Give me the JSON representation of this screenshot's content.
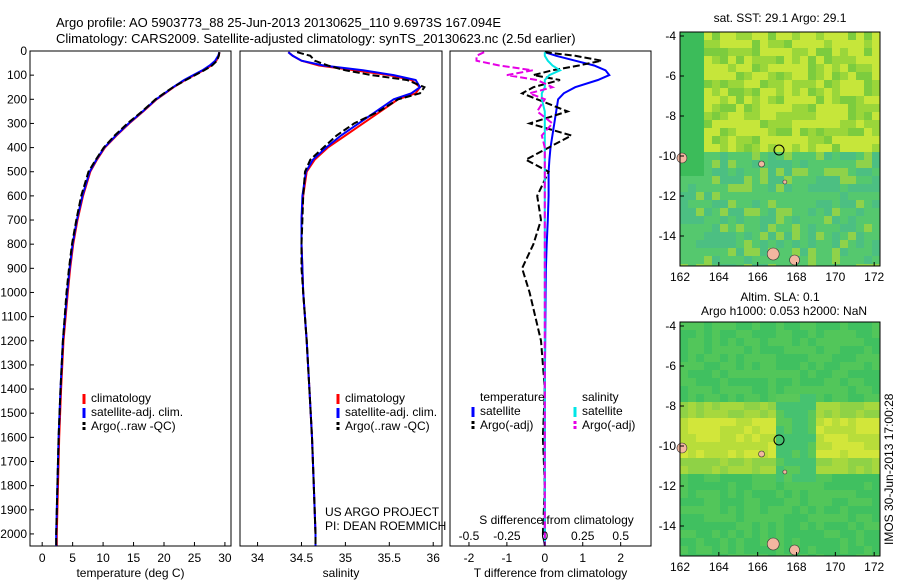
{
  "header": {
    "line1": "Argo profile: AO 5903773_88 25-Jun-2013 20130625_110 9.6973S 167.094E",
    "line2": "Climatology: CARS2009. Satellite-adjusted climatology: synTS_20130623.nc (2.5d earlier)"
  },
  "side_label": "IMOS 30-Jun-2013 17:00:28",
  "colors": {
    "climatology": "#ff0000",
    "satellite": "#0000ff",
    "argo": "#000000",
    "sat_s_diff": "#00e6e6",
    "argo_s_diff": "#e600e6",
    "map_base": "#55c73a",
    "land": "#f2b6a0"
  },
  "chart_data": [
    {
      "type": "line",
      "title": "",
      "xlabel": "temperature (deg C)",
      "ylabel": "",
      "xlim": [
        -2,
        31
      ],
      "ylim": [
        2050,
        0
      ],
      "xticks": [
        "0",
        "5",
        "10",
        "15",
        "20",
        "25",
        "30"
      ],
      "yticks": [
        "0",
        "100",
        "200",
        "300",
        "400",
        "500",
        "600",
        "700",
        "800",
        "900",
        "1000",
        "1100",
        "1200",
        "1300",
        "1400",
        "1500",
        "1600",
        "1700",
        "1800",
        "1900",
        "2000"
      ],
      "legend": [
        "climatology",
        "satellite-adj. clim.",
        "Argo(..raw -QC)"
      ],
      "depth": [
        5,
        20,
        40,
        60,
        80,
        100,
        120,
        150,
        175,
        200,
        250,
        300,
        350,
        400,
        450,
        500,
        600,
        700,
        800,
        900,
        1000,
        1200,
        1400,
        1600,
        1800,
        2000,
        2050
      ],
      "series": [
        {
          "name": "climatology",
          "values": [
            29.1,
            29.0,
            28.6,
            27.8,
            26.5,
            25.0,
            23.5,
            21.6,
            20.2,
            18.8,
            16.6,
            14.3,
            12.2,
            10.3,
            9.0,
            7.9,
            6.7,
            5.8,
            5.1,
            4.6,
            4.2,
            3.5,
            3.1,
            2.8,
            2.6,
            2.4,
            2.4
          ]
        },
        {
          "name": "satellite-adj. clim.",
          "values": [
            29.1,
            28.9,
            28.4,
            27.5,
            26.3,
            24.8,
            23.3,
            21.5,
            20.1,
            18.7,
            16.5,
            14.2,
            12.1,
            10.2,
            8.9,
            7.8,
            6.6,
            5.7,
            5.0,
            4.5,
            4.1,
            3.4,
            3.0,
            2.7,
            2.5,
            2.3,
            2.3
          ]
        },
        {
          "name": "Argo(..raw -QC)",
          "values": [
            29.1,
            29.0,
            28.7,
            27.9,
            26.6,
            25.1,
            23.6,
            21.5,
            20.0,
            18.6,
            16.4,
            14.0,
            11.9,
            10.1,
            8.8,
            7.6,
            6.4,
            5.6,
            4.9,
            4.4,
            4.0,
            3.4,
            3.0,
            2.7,
            2.5,
            2.3,
            2.3
          ]
        }
      ]
    },
    {
      "type": "line",
      "title": "",
      "xlabel": "salinity",
      "ylabel": "",
      "xlim": [
        33.8,
        36.1
      ],
      "ylim": [
        2050,
        0
      ],
      "xticks": [
        "34",
        "34.5",
        "35",
        "35.5",
        "36"
      ],
      "legend": [
        "climatology",
        "satellite-adj. clim.",
        "Argo(..raw -QC)"
      ],
      "annotation": [
        "US ARGO PROJECT",
        "PI: DEAN ROEMMICH"
      ],
      "depth": [
        5,
        20,
        40,
        60,
        80,
        100,
        120,
        150,
        175,
        200,
        250,
        300,
        350,
        400,
        450,
        500,
        600,
        700,
        800,
        900,
        1000,
        1200,
        1400,
        1600,
        1800,
        2000,
        2050
      ],
      "series": [
        {
          "name": "climatology",
          "values": [
            34.35,
            34.4,
            34.5,
            34.7,
            35.1,
            35.5,
            35.75,
            35.85,
            35.8,
            35.6,
            35.4,
            35.2,
            35.0,
            34.8,
            34.65,
            34.56,
            34.52,
            34.5,
            34.5,
            34.51,
            34.52,
            34.56,
            34.59,
            34.62,
            34.64,
            34.66,
            34.66
          ]
        },
        {
          "name": "satellite-adj. clim.",
          "values": [
            34.35,
            34.4,
            34.5,
            34.75,
            35.2,
            35.55,
            35.8,
            35.85,
            35.75,
            35.55,
            35.35,
            35.15,
            34.95,
            34.78,
            34.63,
            34.55,
            34.51,
            34.5,
            34.5,
            34.51,
            34.52,
            34.56,
            34.59,
            34.62,
            34.64,
            34.66,
            34.66
          ]
        },
        {
          "name": "Argo(..raw -QC)",
          "values": [
            34.45,
            34.6,
            34.65,
            34.8,
            35.0,
            35.3,
            35.7,
            35.9,
            35.85,
            35.6,
            35.38,
            35.1,
            34.9,
            34.75,
            34.6,
            34.54,
            34.52,
            34.51,
            34.5,
            34.5,
            34.52,
            34.56,
            34.59,
            34.62,
            34.64,
            34.66,
            34.66
          ]
        }
      ]
    },
    {
      "type": "line",
      "title": "",
      "xlabel": "T difference from climatology",
      "xlabel_top": "S difference from climatology",
      "xlim": [
        -2.5,
        2.8
      ],
      "ylim": [
        2050,
        0
      ],
      "xticks": [
        "-2",
        "-1",
        "0",
        "1",
        "2"
      ],
      "xticks_s": [
        "-0.5",
        "-0.25",
        "0",
        "0.25",
        "0.5"
      ],
      "legend_headers": [
        "temperature",
        "salinity"
      ],
      "legend": [
        "satellite",
        "Argo(-adj)",
        "satellite",
        "Argo(-adj)"
      ],
      "depth": [
        5,
        20,
        40,
        60,
        80,
        100,
        120,
        150,
        175,
        200,
        250,
        300,
        350,
        400,
        450,
        500,
        600,
        700,
        800,
        900,
        1000,
        1200,
        1400,
        1600,
        1800,
        2000,
        2050
      ],
      "series": [
        {
          "name": "T satellite",
          "values": [
            0.0,
            0.3,
            0.8,
            1.3,
            1.6,
            1.7,
            1.4,
            0.8,
            0.5,
            0.35,
            0.3,
            0.25,
            0.2,
            0.15,
            0.12,
            0.1,
            0.1,
            0.08,
            0.05,
            0.03,
            0.02,
            0.01,
            0.0,
            0.0,
            0.0,
            0.0,
            0.0
          ]
        },
        {
          "name": "T Argo(-adj)",
          "values": [
            0.0,
            0.8,
            1.5,
            0.9,
            0.2,
            -0.3,
            0.4,
            -0.3,
            -0.6,
            -0.2,
            0.6,
            -0.4,
            0.7,
            0.1,
            -0.5,
            0.1,
            -0.2,
            -0.1,
            -0.3,
            -0.6,
            -0.4,
            -0.1,
            0.0,
            -0.05,
            0.0,
            -0.05,
            0.0
          ]
        },
        {
          "name": "S satellite",
          "values": [
            0.0,
            0.0,
            0.02,
            0.05,
            0.1,
            0.03,
            0.0,
            0.0,
            -0.02,
            -0.02,
            0.0,
            0.0,
            0.0,
            0.0,
            0.0,
            0.0,
            0.0,
            0.0,
            0.0,
            0.0,
            0.0,
            0.0,
            0.0,
            0.0,
            0.0,
            0.0,
            0.0
          ]
        },
        {
          "name": "S Argo(-adj)",
          "values": [
            -0.4,
            -0.45,
            -0.45,
            -0.3,
            -0.08,
            -0.25,
            -0.05,
            0.05,
            -0.1,
            0.0,
            -0.05,
            0.05,
            -0.02,
            0.0,
            0.0,
            0.0,
            0.0,
            0.0,
            0.0,
            0.0,
            0.0,
            0.0,
            0.0,
            0.0,
            0.0,
            0.0,
            0.0
          ]
        }
      ]
    },
    {
      "type": "heatmap",
      "title": "sat. SST: 29.1 Argo: 29.1",
      "xlim": [
        162,
        172.3
      ],
      "ylim": [
        -15.5,
        -3.8
      ],
      "xticks": [
        "162",
        "164",
        "166",
        "168",
        "170",
        "172"
      ],
      "yticks": [
        "-4",
        "-6",
        "-8",
        "-10",
        "-12",
        "-14"
      ],
      "marker": [
        167.1,
        -9.7
      ]
    },
    {
      "type": "heatmap",
      "title": "Altim. SLA: 0.1",
      "subtitle": "Argo h1000: 0.053 h2000: NaN",
      "xlim": [
        162,
        172.3
      ],
      "ylim": [
        -15.5,
        -3.8
      ],
      "xticks": [
        "162",
        "164",
        "166",
        "168",
        "170",
        "172"
      ],
      "yticks": [
        "-4",
        "-6",
        "-8",
        "-10",
        "-12",
        "-14"
      ],
      "marker": [
        167.1,
        -9.7
      ]
    }
  ]
}
